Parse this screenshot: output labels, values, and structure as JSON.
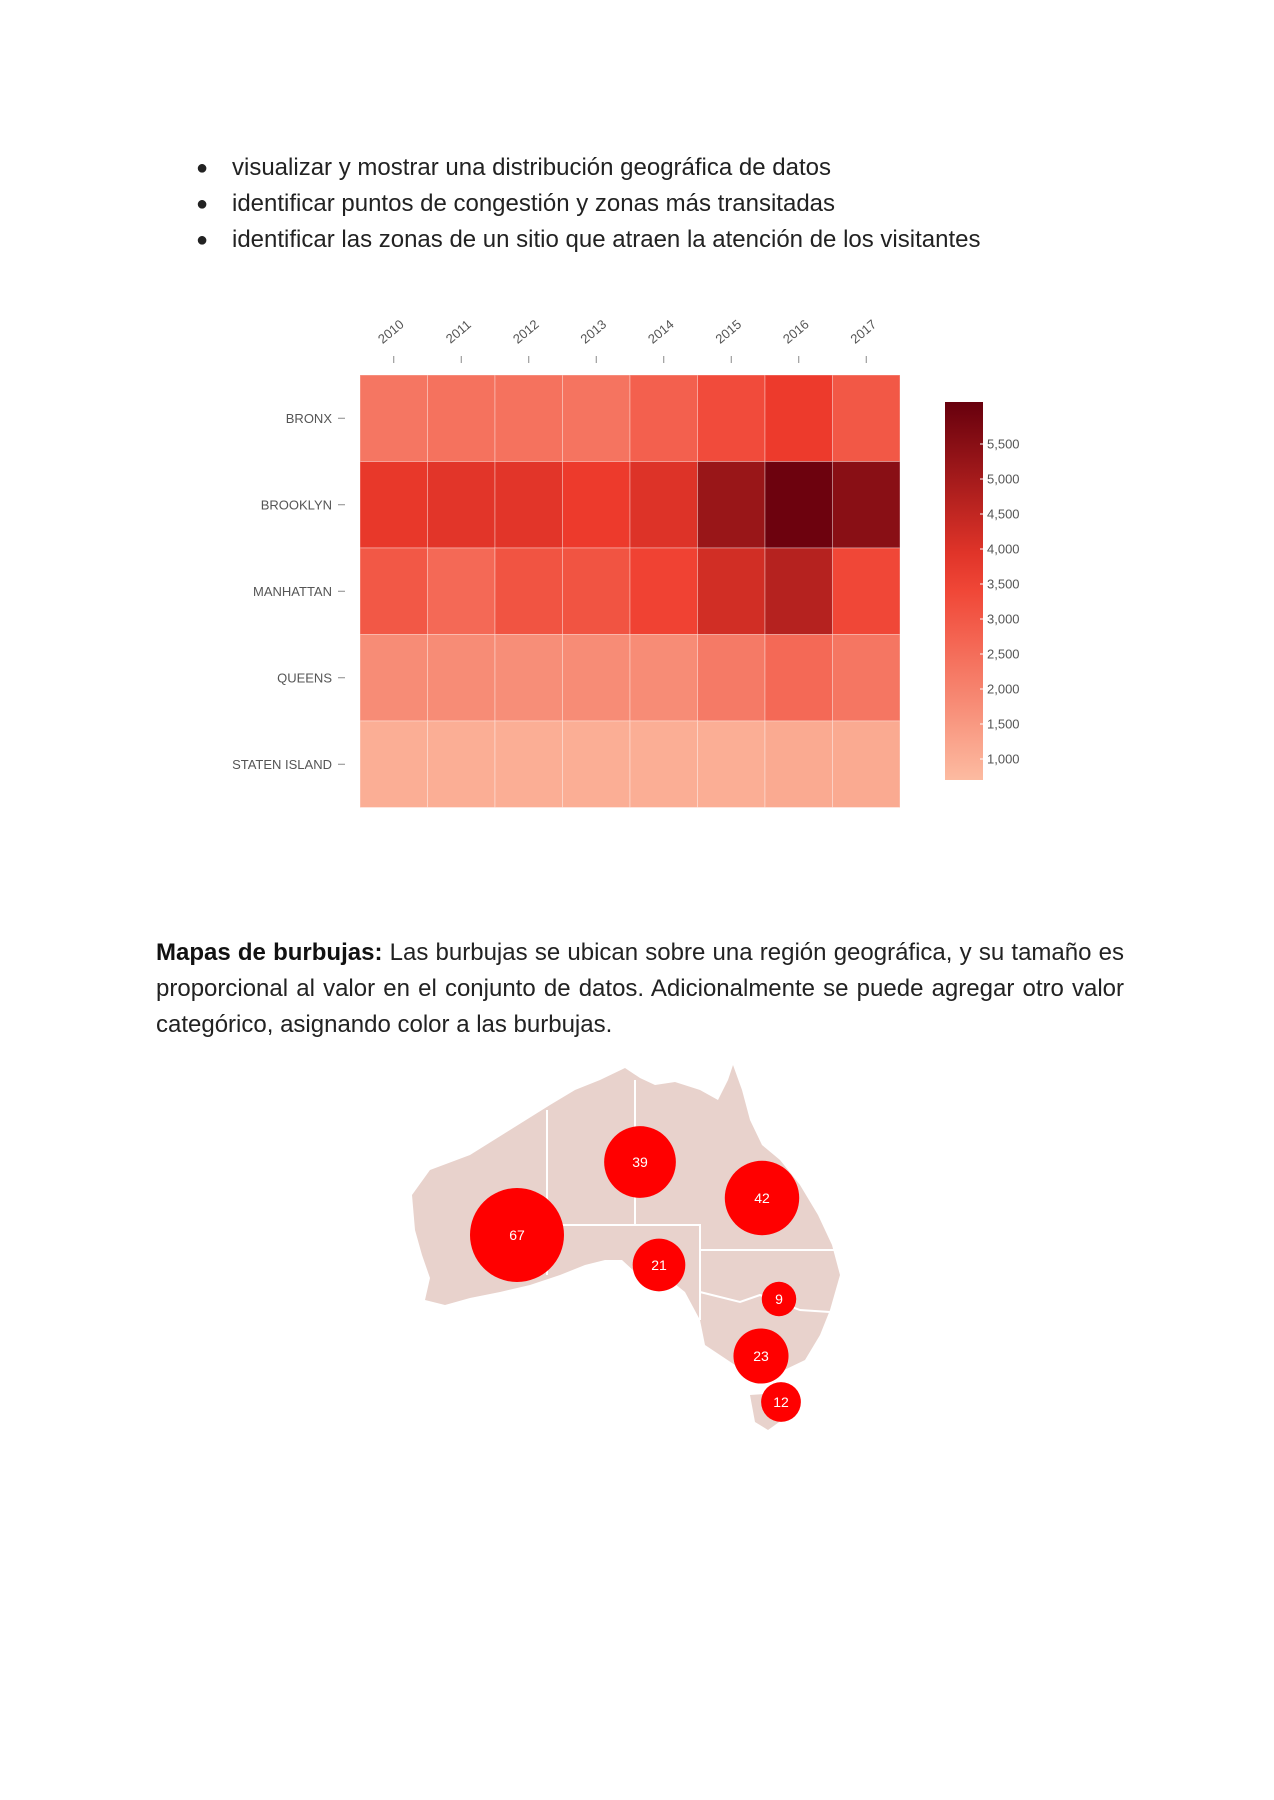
{
  "bullets": [
    "visualizar y mostrar una distribución geográfica de datos",
    "identificar puntos de congestión y zonas más transitadas",
    "identificar las zonas de un sitio que atraen la atención de los visitantes"
  ],
  "paragraph": {
    "lead": "Mapas de burbujas:",
    "text": " Las burbujas se ubican sobre una región geográfica, y su tamaño es proporcional al valor en el conjunto de datos. Adicionalmente se puede agregar otro valor categórico, asignando color a las burbujas."
  },
  "chart_data": [
    {
      "type": "heatmap",
      "x": [
        "2010",
        "2011",
        "2012",
        "2013",
        "2014",
        "2015",
        "2016",
        "2017"
      ],
      "y": [
        "BRONX",
        "BROOKLYN",
        "MANHATTAN",
        "QUEENS",
        "STATEN ISLAND"
      ],
      "values": [
        [
          2300,
          2400,
          2400,
          2350,
          2800,
          3300,
          3700,
          3000
        ],
        [
          3800,
          3900,
          3900,
          3700,
          4000,
          5200,
          6000,
          5500
        ],
        [
          3000,
          2600,
          3100,
          3100,
          3500,
          4200,
          4700,
          3400
        ],
        [
          1800,
          1800,
          1750,
          1800,
          1800,
          2200,
          2600,
          2300
        ],
        [
          1000,
          1000,
          1000,
          1000,
          1000,
          1000,
          1100,
          1100
        ]
      ],
      "colorbar_ticks": [
        "5,500",
        "5,000",
        "4,500",
        "4,000",
        "3,500",
        "3,000",
        "2,500",
        "2,000",
        "1,500",
        "1,000"
      ],
      "color_range": [
        700,
        6100
      ],
      "colors": {
        "low": "#fcbba1",
        "mid": "#ef3b2c",
        "high": "#67000d"
      }
    },
    {
      "type": "bubble-map",
      "bubbles": [
        {
          "label": "67",
          "value": 67
        },
        {
          "label": "39",
          "value": 39
        },
        {
          "label": "42",
          "value": 42
        },
        {
          "label": "21",
          "value": 21
        },
        {
          "label": "9",
          "value": 9
        },
        {
          "label": "23",
          "value": 23
        },
        {
          "label": "12",
          "value": 12
        }
      ],
      "colors": {
        "bubble": "#ff0000",
        "land": "#e8d2cc",
        "border": "#ffffff"
      }
    }
  ]
}
